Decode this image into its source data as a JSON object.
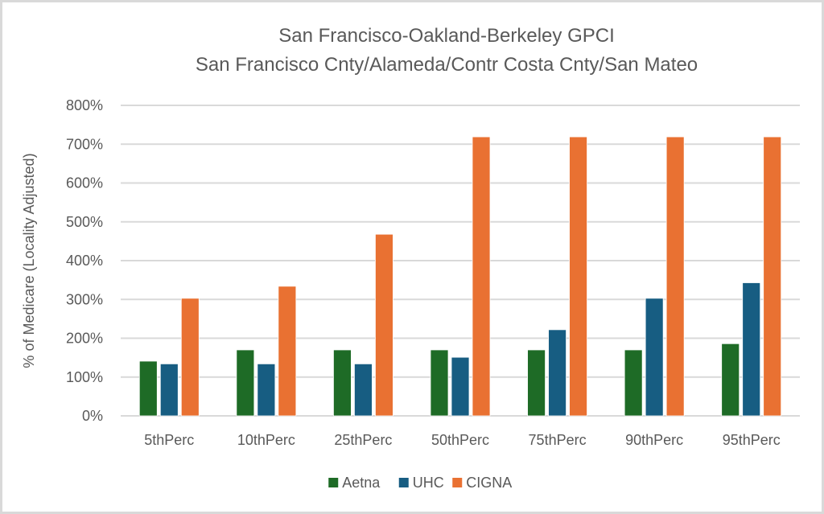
{
  "chart_data": {
    "type": "bar",
    "title": "San Francisco-Oakland-Berkeley GPCI",
    "subtitle": "San Francisco Cnty/Alameda/Contr Costa Cnty/San Mateo",
    "xlabel": "",
    "ylabel": "% of Medicare (Locality Adjusted)",
    "categories": [
      "5thPerc",
      "10thPerc",
      "25thPerc",
      "50thPerc",
      "75thPerc",
      "90thPerc",
      "95thPerc"
    ],
    "series": [
      {
        "name": "Aetna",
        "color": "#1e6b26",
        "values": [
          141,
          170,
          170,
          170,
          170,
          170,
          186
        ]
      },
      {
        "name": "UHC",
        "color": "#175d82",
        "values": [
          134,
          134,
          134,
          151,
          222,
          303,
          343
        ]
      },
      {
        "name": "CIGNA",
        "color": "#e97132",
        "values": [
          303,
          334,
          468,
          719,
          719,
          719,
          719
        ]
      }
    ],
    "ylim": [
      0,
      800
    ],
    "yticks": [
      0,
      100,
      200,
      300,
      400,
      500,
      600,
      700,
      800
    ],
    "ytick_labels": [
      "0%",
      "100%",
      "200%",
      "300%",
      "400%",
      "500%",
      "600%",
      "700%",
      "800%"
    ],
    "grid": true,
    "legend_position": "bottom"
  }
}
